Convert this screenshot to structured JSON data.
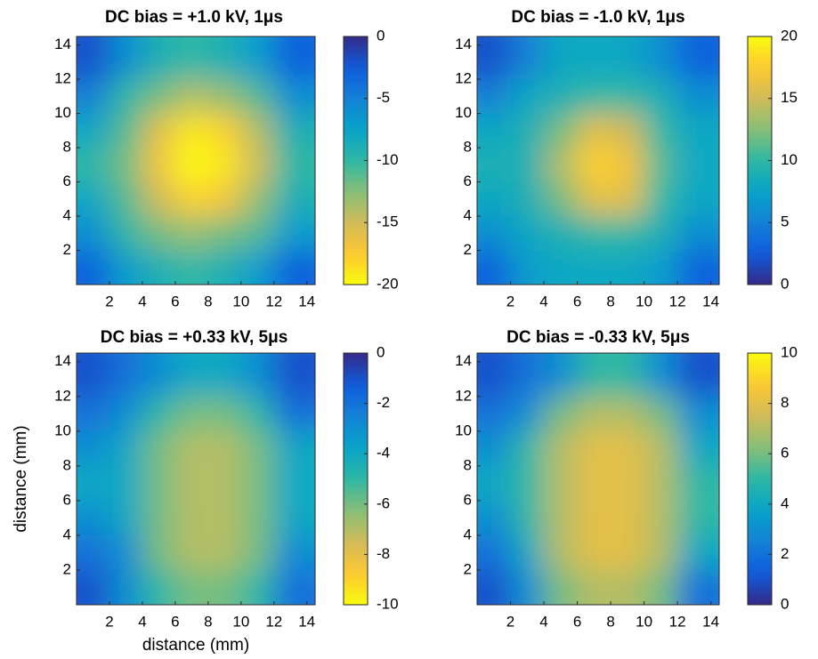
{
  "chart_data": [
    {
      "type": "heatmap",
      "title": "DC bias = +1.0 kV, 1μs",
      "x": [
        1,
        3,
        5,
        7,
        9,
        11,
        13
      ],
      "y": [
        1,
        3,
        5,
        7,
        9,
        11,
        13
      ],
      "z": [
        [
          -3,
          -7,
          -9,
          -10,
          -9,
          -7,
          -3
        ],
        [
          -6,
          -10,
          -12,
          -13,
          -12,
          -11,
          -7
        ],
        [
          -8,
          -11,
          -15,
          -18,
          -17,
          -13,
          -9
        ],
        [
          -10,
          -12,
          -17,
          -20,
          -19,
          -15,
          -10
        ],
        [
          -8,
          -11,
          -16,
          -19,
          -18,
          -14,
          -9
        ],
        [
          -5,
          -10,
          -12,
          -14,
          -13,
          -11,
          -6
        ],
        [
          -2,
          -6,
          -9,
          -10,
          -9,
          -7,
          -3
        ]
      ],
      "xlim": [
        0,
        14.5
      ],
      "ylim": [
        0,
        14.5
      ],
      "xticks": [
        2,
        4,
        6,
        8,
        10,
        12,
        14
      ],
      "yticks": [
        2,
        4,
        6,
        8,
        10,
        12,
        14
      ],
      "clim": [
        -20,
        0
      ],
      "cticks": [
        0,
        -5,
        -10,
        -15,
        -20
      ],
      "colormap": [
        "#352a87",
        "#0f5cdd",
        "#1481d6",
        "#06a4ca",
        "#2eb7a4",
        "#87bf77",
        "#d1bb59",
        "#fec832",
        "#f9fb0e"
      ],
      "reverse_colormap": true
    },
    {
      "type": "heatmap",
      "title": "DC bias = -1.0 kV, 1μs",
      "x": [
        1,
        3,
        5,
        7,
        9,
        11,
        13
      ],
      "y": [
        1,
        3,
        5,
        7,
        9,
        11,
        13
      ],
      "z": [
        [
          3,
          7,
          8,
          8,
          8,
          7,
          3
        ],
        [
          6,
          8,
          9,
          10,
          10,
          9,
          6
        ],
        [
          8,
          9,
          12,
          16,
          16,
          10,
          8
        ],
        [
          9,
          9,
          14,
          18,
          17,
          11,
          8
        ],
        [
          8,
          9,
          12,
          16,
          15,
          10,
          8
        ],
        [
          5,
          8,
          9,
          10,
          10,
          9,
          6
        ],
        [
          2,
          5,
          8,
          8,
          8,
          6,
          3
        ]
      ],
      "xlim": [
        0,
        14.5
      ],
      "ylim": [
        0,
        14.5
      ],
      "xticks": [
        2,
        4,
        6,
        8,
        10,
        12,
        14
      ],
      "yticks": [
        2,
        4,
        6,
        8,
        10,
        12,
        14
      ],
      "clim": [
        0,
        20
      ],
      "cticks": [
        0,
        5,
        10,
        15,
        20
      ],
      "colormap": [
        "#352a87",
        "#0f5cdd",
        "#1481d6",
        "#06a4ca",
        "#2eb7a4",
        "#87bf77",
        "#d1bb59",
        "#fec832",
        "#f9fb0e"
      ],
      "reverse_colormap": false
    },
    {
      "type": "heatmap",
      "title": "DC bias = +0.33 kV, 5μs",
      "xlabel": "distance (mm)",
      "ylabel": "distance (mm)",
      "x": [
        1,
        3,
        5,
        7,
        9,
        11,
        13
      ],
      "y": [
        1,
        3,
        5,
        7,
        9,
        11,
        13
      ],
      "z": [
        [
          -1,
          -3,
          -5,
          -6,
          -6,
          -5,
          -2
        ],
        [
          -2,
          -3,
          -6,
          -7,
          -7,
          -6,
          -3
        ],
        [
          -3,
          -4,
          -6,
          -7,
          -7,
          -6,
          -4
        ],
        [
          -4,
          -4,
          -6,
          -7,
          -7,
          -6,
          -4
        ],
        [
          -3,
          -4,
          -6,
          -7,
          -7,
          -6,
          -4
        ],
        [
          -2,
          -3,
          -5,
          -6,
          -6,
          -5,
          -2
        ],
        [
          -1,
          -2,
          -3,
          -4,
          -4,
          -3,
          -1
        ]
      ],
      "xlim": [
        0,
        14.5
      ],
      "ylim": [
        0,
        14.5
      ],
      "xticks": [
        2,
        4,
        6,
        8,
        10,
        12,
        14
      ],
      "yticks": [
        2,
        4,
        6,
        8,
        10,
        12,
        14
      ],
      "clim": [
        -10,
        0
      ],
      "cticks": [
        0,
        -2,
        -4,
        -6,
        -8,
        -10
      ],
      "colormap": [
        "#352a87",
        "#0f5cdd",
        "#1481d6",
        "#06a4ca",
        "#2eb7a4",
        "#87bf77",
        "#d1bb59",
        "#fec832",
        "#f9fb0e"
      ],
      "reverse_colormap": true
    },
    {
      "type": "heatmap",
      "title": "DC bias = -0.33 kV, 5μs",
      "x": [
        1,
        3,
        5,
        7,
        9,
        11,
        13
      ],
      "y": [
        1,
        3,
        5,
        7,
        9,
        11,
        13
      ],
      "z": [
        [
          1,
          3,
          6,
          7,
          7,
          6,
          2
        ],
        [
          2,
          4,
          7,
          8,
          8,
          7,
          4
        ],
        [
          3,
          5,
          7,
          8,
          8,
          7,
          5
        ],
        [
          4,
          5,
          7,
          8,
          8,
          7,
          5
        ],
        [
          3,
          5,
          7,
          8,
          8,
          7,
          4
        ],
        [
          2,
          3,
          6,
          7,
          7,
          6,
          3
        ],
        [
          1,
          2,
          3,
          5,
          5,
          3,
          1
        ]
      ],
      "xlim": [
        0,
        14.5
      ],
      "ylim": [
        0,
        14.5
      ],
      "xticks": [
        2,
        4,
        6,
        8,
        10,
        12,
        14
      ],
      "yticks": [
        2,
        4,
        6,
        8,
        10,
        12,
        14
      ],
      "clim": [
        0,
        10
      ],
      "cticks": [
        0,
        2,
        4,
        6,
        8,
        10
      ],
      "colormap": [
        "#352a87",
        "#0f5cdd",
        "#1481d6",
        "#06a4ca",
        "#2eb7a4",
        "#87bf77",
        "#d1bb59",
        "#fec832",
        "#f9fb0e"
      ],
      "reverse_colormap": false
    }
  ]
}
